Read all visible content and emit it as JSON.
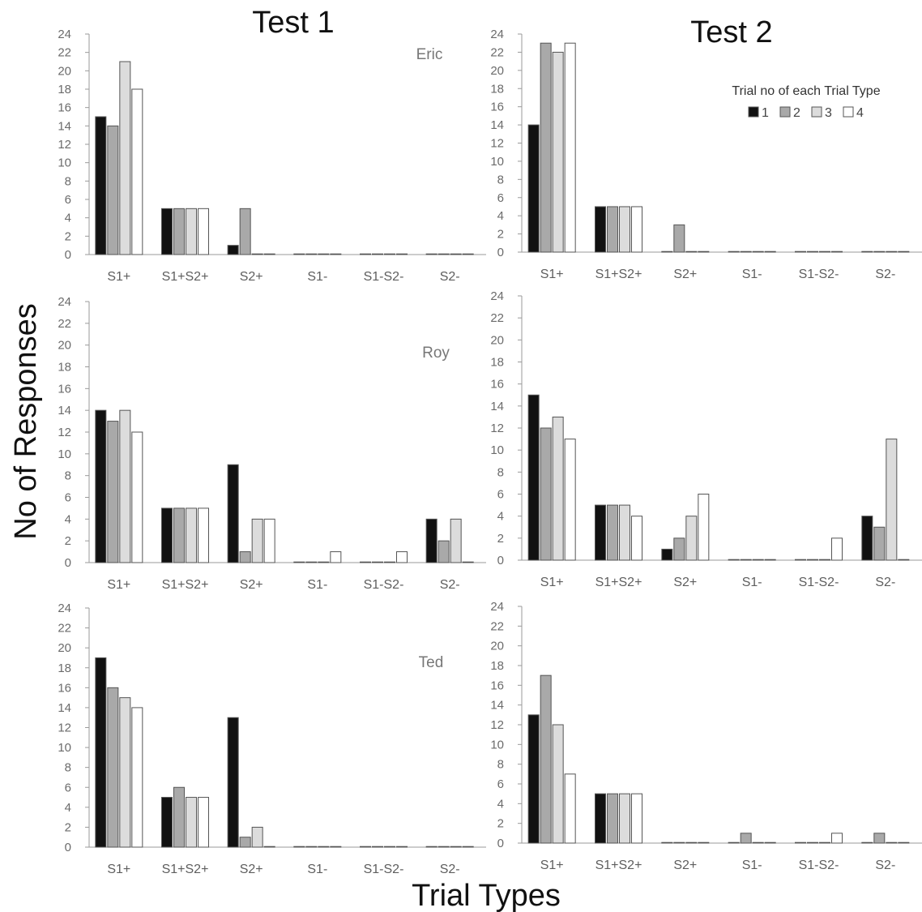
{
  "figure": {
    "column_titles": [
      "Test 1",
      "Test 2"
    ],
    "y_axis_title": "No of Responses",
    "x_axis_title": "Trial Types",
    "legend_title": "Trial no of each Trial Type",
    "legend_items": [
      "1",
      "2",
      "3",
      "4"
    ]
  },
  "colors": {
    "series": [
      "#111111",
      "#a9a9a9",
      "#dcdcdc",
      "#ffffff"
    ],
    "bar_stroke": "#555555",
    "axis": "#9a9a9a"
  },
  "chart_data": [
    {
      "type": "bar",
      "subject": "Eric",
      "test": "Test 1",
      "categories": [
        "S1+",
        "S1+S2+",
        "S2+",
        "S1-",
        "S1-S2-",
        "S2-"
      ],
      "yticks": [
        0,
        2,
        4,
        6,
        8,
        10,
        12,
        14,
        16,
        18,
        20,
        22,
        24
      ],
      "ylim": [
        0,
        24
      ],
      "series": [
        {
          "name": "1",
          "values": [
            15,
            5,
            1,
            0,
            0,
            0
          ]
        },
        {
          "name": "2",
          "values": [
            14,
            5,
            5,
            0,
            0,
            0
          ]
        },
        {
          "name": "3",
          "values": [
            21,
            5,
            0,
            0,
            0,
            0
          ]
        },
        {
          "name": "4",
          "values": [
            18,
            5,
            0,
            0,
            0,
            0
          ]
        }
      ]
    },
    {
      "type": "bar",
      "subject": "",
      "test": "Test 2",
      "categories": [
        "S1+",
        "S1+S2+",
        "S2+",
        "S1-",
        "S1-S2-",
        "S2-"
      ],
      "yticks": [
        0,
        2,
        4,
        6,
        8,
        10,
        12,
        14,
        16,
        18,
        20,
        22,
        24
      ],
      "ylim": [
        0,
        24
      ],
      "series": [
        {
          "name": "1",
          "values": [
            14,
            5,
            0,
            0,
            0,
            0
          ]
        },
        {
          "name": "2",
          "values": [
            23,
            5,
            3,
            0,
            0,
            0
          ]
        },
        {
          "name": "3",
          "values": [
            22,
            5,
            0,
            0,
            0,
            0
          ]
        },
        {
          "name": "4",
          "values": [
            23,
            5,
            0,
            0,
            0,
            0
          ]
        }
      ]
    },
    {
      "type": "bar",
      "subject": "Roy",
      "test": "Test 1",
      "categories": [
        "S1+",
        "S1+S2+",
        "S2+",
        "S1-",
        "S1-S2-",
        "S2-"
      ],
      "yticks": [
        0,
        2,
        4,
        6,
        8,
        10,
        12,
        14,
        16,
        18,
        20,
        22,
        24
      ],
      "ylim": [
        0,
        24
      ],
      "series": [
        {
          "name": "1",
          "values": [
            14,
            5,
            9,
            0,
            0,
            4
          ]
        },
        {
          "name": "2",
          "values": [
            13,
            5,
            1,
            0,
            0,
            2
          ]
        },
        {
          "name": "3",
          "values": [
            14,
            5,
            4,
            0,
            0,
            4
          ]
        },
        {
          "name": "4",
          "values": [
            12,
            5,
            4,
            1,
            1,
            0
          ]
        }
      ]
    },
    {
      "type": "bar",
      "subject": "",
      "test": "Test 2",
      "categories": [
        "S1+",
        "S1+S2+",
        "S2+",
        "S1-",
        "S1-S2-",
        "S2-"
      ],
      "yticks": [
        0,
        2,
        4,
        6,
        8,
        10,
        12,
        14,
        16,
        18,
        20,
        22,
        24
      ],
      "ylim": [
        0,
        24
      ],
      "series": [
        {
          "name": "1",
          "values": [
            15,
            5,
            1,
            0,
            0,
            4
          ]
        },
        {
          "name": "2",
          "values": [
            12,
            5,
            2,
            0,
            0,
            3
          ]
        },
        {
          "name": "3",
          "values": [
            13,
            5,
            4,
            0,
            0,
            11
          ]
        },
        {
          "name": "4",
          "values": [
            11,
            4,
            6,
            0,
            2,
            0
          ]
        }
      ]
    },
    {
      "type": "bar",
      "subject": "Ted",
      "test": "Test 1",
      "categories": [
        "S1+",
        "S1+S2+",
        "S2+",
        "S1-",
        "S1-S2-",
        "S2-"
      ],
      "yticks": [
        0,
        2,
        4,
        6,
        8,
        10,
        12,
        14,
        16,
        18,
        20,
        22,
        24
      ],
      "ylim": [
        0,
        24
      ],
      "series": [
        {
          "name": "1",
          "values": [
            19,
            5,
            13,
            0,
            0,
            0
          ]
        },
        {
          "name": "2",
          "values": [
            16,
            6,
            1,
            0,
            0,
            0
          ]
        },
        {
          "name": "3",
          "values": [
            15,
            5,
            2,
            0,
            0,
            0
          ]
        },
        {
          "name": "4",
          "values": [
            14,
            5,
            0,
            0,
            0,
            0
          ]
        }
      ]
    },
    {
      "type": "bar",
      "subject": "",
      "test": "Test 2",
      "categories": [
        "S1+",
        "S1+S2+",
        "S2+",
        "S1-",
        "S1-S2-",
        "S2-"
      ],
      "yticks": [
        0,
        2,
        4,
        6,
        8,
        10,
        12,
        14,
        16,
        18,
        20,
        22,
        24
      ],
      "ylim": [
        0,
        24
      ],
      "series": [
        {
          "name": "1",
          "values": [
            13,
            5,
            0,
            0,
            0,
            0
          ]
        },
        {
          "name": "2",
          "values": [
            17,
            5,
            0,
            1,
            0,
            1
          ]
        },
        {
          "name": "3",
          "values": [
            12,
            5,
            0,
            0,
            0,
            0
          ]
        },
        {
          "name": "4",
          "values": [
            7,
            5,
            0,
            0,
            1,
            0
          ]
        }
      ]
    }
  ]
}
